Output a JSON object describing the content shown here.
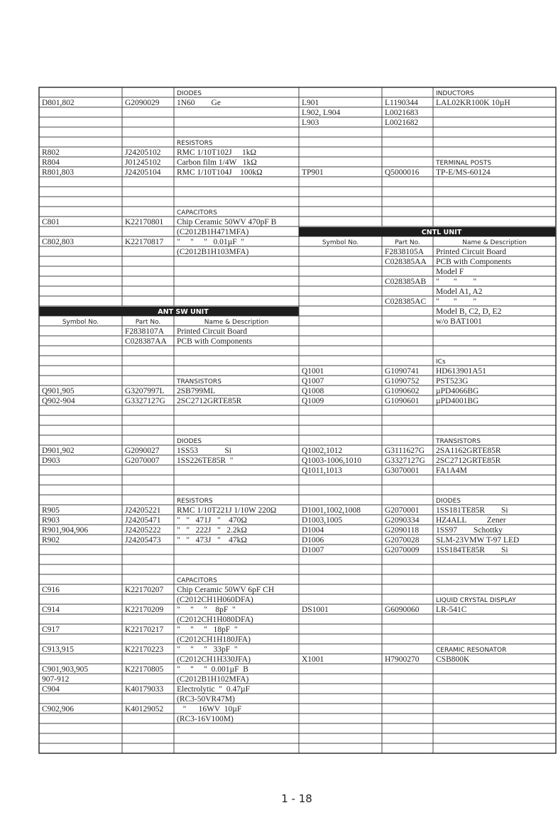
{
  "left": {
    "rows": [
      {
        "heading": "DIODES"
      },
      [
        "D801,802",
        "G2090029",
        "1N60        Ge"
      ],
      null,
      null,
      null,
      {
        "heading": "RESISTORS"
      },
      [
        "R802",
        "J24205102",
        "RMC 1/10T102J     1kΩ"
      ],
      [
        "R804",
        "J01245102",
        "Carbon film 1/4W   1kΩ"
      ],
      [
        "R801,803",
        "J24205104",
        "RMC 1/10T104J    100kΩ"
      ],
      null,
      null,
      null,
      {
        "heading": "CAPACITORS"
      },
      [
        "C801",
        "K22170801",
        "Chip Ceramic 50WV 470pF B"
      ],
      [
        null,
        null,
        "(C2012B1H471MFA)"
      ],
      [
        "C802,803",
        "K22170817",
        "\"     \"     \"   0.01µF  \""
      ],
      [
        null,
        null,
        "(C2012B1H103MFA)"
      ],
      null,
      null,
      null,
      null,
      null,
      {
        "unit": "ANT SW UNIT"
      },
      {
        "columns": [
          "Symbol No.",
          "Part No.",
          "Name & Description"
        ]
      },
      [
        null,
        "F2838107A",
        "Printed Circuit Board"
      ],
      [
        null,
        "C028387AA",
        "PCB with Components"
      ],
      null,
      null,
      null,
      {
        "heading": "TRANSISTORS"
      },
      [
        "Q901,905",
        "G3207997L",
        "2SB799ML"
      ],
      [
        "Q902-904",
        "G3327127G",
        "2SC2712GRTE85R"
      ],
      null,
      null,
      null,
      {
        "heading": "DIODES"
      },
      [
        "D901,902",
        "G2090027",
        "1SS53             Si"
      ],
      [
        "D903",
        "G2070007",
        "1SS226TE85R  \""
      ],
      null,
      null,
      null,
      {
        "heading": "RESISTORS"
      },
      [
        "R905",
        "J24205221",
        "RMC 1/10T221J 1/10W 220Ω"
      ],
      [
        "R903",
        "J24205471",
        "\"   \"   471J   \"    470Ω"
      ],
      [
        "R901,904,906",
        "J24205222",
        "\"   \"   222J   \"   2.2kΩ"
      ],
      [
        "R902",
        "J24205473",
        "\"   \"   473J   \"    47kΩ"
      ],
      null,
      null,
      null,
      {
        "heading": "CAPACITORS"
      },
      [
        "C916",
        "K22170207",
        "Chip Ceramic 50WV 6pF CH"
      ],
      [
        null,
        null,
        "(C2012CH1H060DFA)"
      ],
      [
        "C914",
        "K22170209",
        "\"     \"     \"    8pF  \""
      ],
      [
        null,
        null,
        "(C2012CH1H080DFA)"
      ],
      [
        "C917",
        "K22170217",
        "\"     \"     \"   18pF  \""
      ],
      [
        null,
        null,
        "(C2012CH1H180JFA)"
      ],
      [
        "C913,915",
        "K22170223",
        "\"     \"     \"   33pF  \""
      ],
      [
        null,
        null,
        "(C2012CH1H330JFA)"
      ],
      [
        "C901,903,905",
        "K22170805",
        "\"     \"     \"  0.001µF  B"
      ],
      [
        "907-912",
        null,
        "(C2012B1H102MFA)"
      ],
      [
        "C904",
        "K40179033",
        "Electrolytic  \"  0.47µF"
      ],
      [
        null,
        null,
        "(RC3-50VR47M)"
      ],
      [
        "C902,906",
        "K40129052",
        "   \"      16WV  10µF"
      ],
      [
        null,
        null,
        "(RC3-16V100M)"
      ],
      null,
      null,
      null
    ]
  },
  "right": {
    "rows": [
      {
        "heading": "INDUCTORS"
      },
      [
        "L901",
        "L1190344",
        "LAL02KR100K 10µH"
      ],
      [
        "L902, L904",
        "L0021683",
        null
      ],
      [
        "L903",
        "L0021682",
        null
      ],
      null,
      null,
      null,
      {
        "heading": "TERMINAL POSTS"
      },
      [
        "TP901",
        "Q5000016",
        "TP-E/MS-60124"
      ],
      null,
      null,
      null,
      null,
      null,
      {
        "unit": "CNTL UNIT"
      },
      {
        "columns": [
          "Symbol No.",
          "Part No.",
          "Name & Description"
        ]
      },
      [
        null,
        "F2838105A",
        "Printed Circuit Board"
      ],
      [
        null,
        "C028385AA",
        "PCB with Components"
      ],
      [
        null,
        null,
        "Model F"
      ],
      [
        null,
        "C028385AB",
        "\"       \"        \""
      ],
      [
        null,
        null,
        "Model A1, A2"
      ],
      [
        null,
        "C028385AC",
        "\"       \"        \""
      ],
      [
        null,
        null,
        "Model B, C2, D, E2"
      ],
      [
        null,
        null,
        "w/o BAT1001"
      ],
      null,
      null,
      null,
      {
        "heading": "ICs"
      },
      [
        "Q1001",
        "G1090741",
        "HD613901A51"
      ],
      [
        "Q1007",
        "G1090752",
        "PST523G"
      ],
      [
        "Q1008",
        "G1090602",
        "µPD4066BG"
      ],
      [
        "Q1009",
        "G1090601",
        "µPD4001BG"
      ],
      null,
      null,
      null,
      {
        "heading": "TRANSISTORS"
      },
      [
        "Q1002,1012",
        "G3111627G",
        "2SA1162GRTE85R"
      ],
      [
        "Q1003-1006,1010",
        "G3327127G",
        "2SC2712GRTE85R"
      ],
      [
        "Q1011,1013",
        "G3070001",
        "FA1A4M"
      ],
      null,
      null,
      {
        "heading": "DIODES"
      },
      [
        "D1001,1002,1008",
        "G2070001",
        "1SS181TE85R        Si"
      ],
      [
        "D1003,1005",
        "G2090334",
        "HZ4ALL          Zener"
      ],
      [
        "D1004",
        "G2090118",
        "1SS97        Schottky"
      ],
      [
        "D1006",
        "G2070028",
        "SLM-23VMW T-97 LED"
      ],
      [
        "D1007",
        "G2070009",
        "1SS184TE85R        Si"
      ],
      null,
      null,
      null,
      null,
      {
        "heading": "LIQUID CRYSTAL DISPLAY"
      },
      [
        "DS1001",
        "G6090060",
        "LR-541C"
      ],
      null,
      null,
      null,
      {
        "heading": "CERAMIC RESONATOR"
      },
      [
        "X1001",
        "H7900270",
        "CSB800K"
      ],
      null,
      null,
      null,
      null,
      null,
      null,
      null,
      null,
      null
    ]
  },
  "footer": {
    "page": "1 - 18"
  }
}
